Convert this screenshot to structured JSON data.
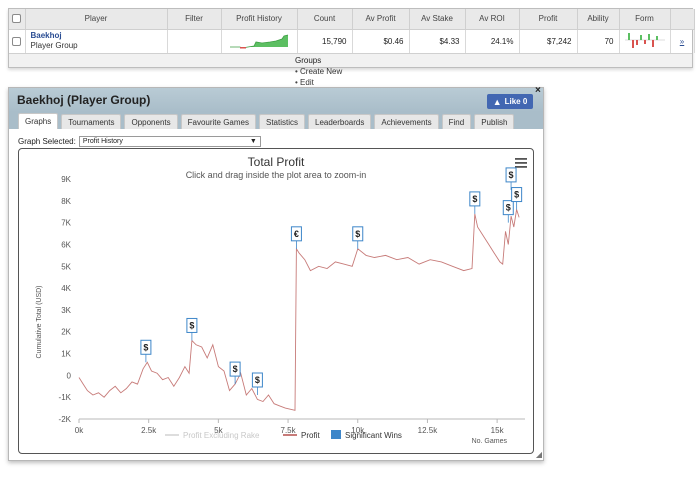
{
  "table": {
    "headers": [
      "Player",
      "Filter",
      "Profit History",
      "Count",
      "Av Profit",
      "Av Stake",
      "Av ROI",
      "Profit",
      "Ability",
      "Form"
    ],
    "row": {
      "player_name": "Baekhoj",
      "player_type": "Player Group",
      "filter": "",
      "count": "15,790",
      "av_profit": "$0.46",
      "av_stake": "$4.33",
      "av_roi": "24.1%",
      "profit": "$7,242",
      "ability": "70",
      "link": "»"
    },
    "groups_menu": {
      "title": "Groups",
      "items": [
        "Create New",
        "Edit"
      ]
    }
  },
  "panel": {
    "title": "Baekhoj (Player Group)",
    "like_label": "Like 0",
    "close_label": "×",
    "tabs": [
      "Graphs",
      "Tournaments",
      "Opponents",
      "Favourite Games",
      "Statistics",
      "Leaderboards",
      "Achievements",
      "Find",
      "Publish"
    ],
    "graph_selected_label": "Graph Selected:",
    "graph_selected_value": "Profit History"
  },
  "chart_data": {
    "type": "line",
    "title": "Total Profit",
    "subtitle": "Click and drag inside the plot area to zoom-in",
    "ylabel": "Cumulative Total (USD)",
    "xlabel": "No. Games",
    "ylim": [
      -2000,
      9000
    ],
    "xlim": [
      0,
      16000
    ],
    "yticks": [
      "9K",
      "8K",
      "7K",
      "6K",
      "5K",
      "4K",
      "3K",
      "2K",
      "1K",
      "0",
      "-1K",
      "-2K"
    ],
    "xticks": [
      "0k",
      "2.5k",
      "5k",
      "7.5k",
      "10k",
      "12.5k",
      "15k"
    ],
    "legend": [
      "Profit Excluding Rake",
      "Profit",
      "Significant Wins"
    ],
    "legend_position": "bottom",
    "colors": {
      "profit": "#c77b79",
      "excl_rake": "#dddddd",
      "wins": "#3d86c9"
    },
    "series": [
      {
        "name": "Profit",
        "x": [
          0,
          150,
          300,
          500,
          700,
          900,
          1100,
          1300,
          1500,
          1700,
          1900,
          2100,
          2300,
          2450,
          2600,
          2800,
          3000,
          3200,
          3400,
          3600,
          3800,
          3950,
          4050,
          4200,
          4400,
          4600,
          4800,
          5000,
          5200,
          5400,
          5600,
          5800,
          6000,
          6200,
          6400,
          6600,
          6800,
          7000,
          7200,
          7400,
          7750,
          7800,
          7900,
          8100,
          8300,
          8600,
          8900,
          9200,
          9500,
          9800,
          10000,
          10300,
          10600,
          11000,
          11400,
          11800,
          12200,
          12600,
          13000,
          13400,
          13800,
          14100,
          14200,
          14300,
          14500,
          14700,
          14900,
          15100,
          15200,
          15300,
          15400,
          15500,
          15600,
          15700,
          15790
        ],
        "values": [
          -100,
          -400,
          -700,
          -900,
          -800,
          -1000,
          -700,
          -500,
          -800,
          -600,
          -300,
          -400,
          300,
          600,
          200,
          100,
          -200,
          -100,
          -500,
          -100,
          400,
          100,
          1600,
          1400,
          1300,
          800,
          1400,
          400,
          200,
          -700,
          -400,
          100,
          -900,
          -600,
          -1100,
          -1200,
          -900,
          -1300,
          -1400,
          -1500,
          -1600,
          5800,
          5600,
          5300,
          4800,
          5000,
          4900,
          5200,
          5100,
          5000,
          5800,
          5500,
          5400,
          5500,
          5300,
          5400,
          5100,
          5300,
          5200,
          5000,
          4800,
          4900,
          7400,
          6800,
          6400,
          6000,
          5600,
          5200,
          5100,
          6600,
          6000,
          7300,
          6800,
          7600,
          7242
        ]
      }
    ],
    "significant_wins": [
      {
        "x": 2400,
        "y": 600,
        "label": "$"
      },
      {
        "x": 4050,
        "y": 1600,
        "label": "$"
      },
      {
        "x": 5600,
        "y": -400,
        "label": "$"
      },
      {
        "x": 6400,
        "y": -900,
        "label": "$"
      },
      {
        "x": 7800,
        "y": 5800,
        "label": "€"
      },
      {
        "x": 10000,
        "y": 5800,
        "label": "$"
      },
      {
        "x": 14200,
        "y": 7400,
        "label": "$"
      },
      {
        "x": 15400,
        "y": 7000,
        "label": "$"
      },
      {
        "x": 15500,
        "y": 8500,
        "label": "$"
      },
      {
        "x": 15700,
        "y": 7600,
        "label": "$"
      }
    ]
  }
}
